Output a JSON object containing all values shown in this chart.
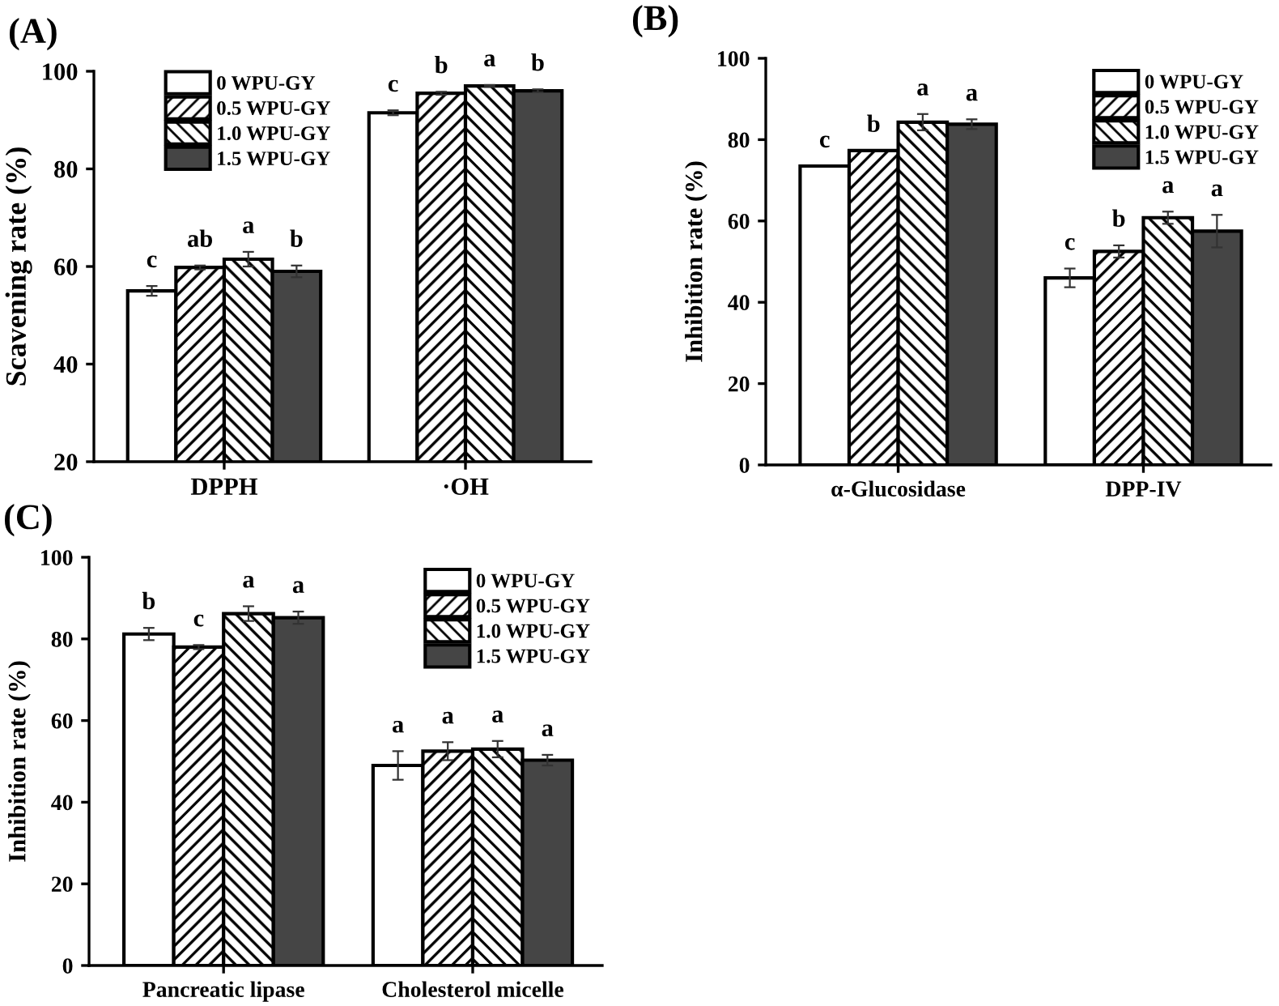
{
  "chart_data": [
    {
      "type": "bar",
      "title": "(A)",
      "ylabel": "Scavening rate (%)",
      "categories": [
        "DPPH",
        "·OH"
      ],
      "ylim": [
        20,
        100
      ],
      "yticks": [
        20,
        40,
        60,
        80,
        100
      ],
      "grid": false,
      "legend": "top left",
      "series": [
        {
          "name": "0 WPU-GY",
          "color": "#ffffff",
          "values": [
            55,
            91.5
          ],
          "errors": [
            1,
            0.5
          ],
          "value_labels": [
            "c",
            "c"
          ]
        },
        {
          "name": "0.5 WPU-GY",
          "color": "#000000",
          "values": [
            59.8,
            95.5
          ],
          "errors": [
            0.4,
            0.3
          ],
          "value_labels": [
            "ab",
            "b"
          ]
        },
        {
          "name": "1.0 WPU-GY",
          "color": "#000000",
          "values": [
            61.5,
            97
          ],
          "errors": [
            1.5,
            0.2
          ],
          "value_labels": [
            "a",
            "a"
          ]
        },
        {
          "name": "1.5 WPU-GY",
          "color": "#454545",
          "values": [
            59,
            96
          ],
          "errors": [
            1.2,
            0.3
          ],
          "value_labels": [
            "b",
            "b"
          ]
        }
      ]
    },
    {
      "type": "bar",
      "title": "(B)",
      "ylabel": "Inhibition rate (%)",
      "categories": [
        "α-Glucosidase",
        "DPP-IV"
      ],
      "ylim": [
        0,
        100
      ],
      "yticks": [
        0,
        20,
        40,
        60,
        80,
        100
      ],
      "grid": false,
      "legend": "top right",
      "series": [
        {
          "name": "0 WPU-GY",
          "color": "#ffffff",
          "values": [
            73.5,
            46
          ],
          "errors": [
            null,
            2.3
          ],
          "value_labels": [
            "c",
            "c"
          ]
        },
        {
          "name": "0.5 WPU-GY",
          "color": "#000000",
          "values": [
            77.3,
            52.5
          ],
          "errors": [
            null,
            1.5
          ],
          "value_labels": [
            "b",
            "b"
          ]
        },
        {
          "name": "1.0 WPU-GY",
          "color": "#000000",
          "values": [
            84.3,
            60.8
          ],
          "errors": [
            2,
            1.5
          ],
          "value_labels": [
            "a",
            "a"
          ]
        },
        {
          "name": "1.5 WPU-GY",
          "color": "#454545",
          "values": [
            83.8,
            57.5
          ],
          "errors": [
            1.2,
            4
          ],
          "value_labels": [
            "a",
            "a"
          ]
        }
      ]
    },
    {
      "type": "bar",
      "title": "(C)",
      "ylabel": "Inhibition rate (%)",
      "categories": [
        "Pancreatic lipase",
        "Cholesterol micelle"
      ],
      "ylim": [
        0,
        100
      ],
      "yticks": [
        0,
        20,
        40,
        60,
        80,
        100
      ],
      "grid": false,
      "legend": "top right",
      "series": [
        {
          "name": "0 WPU-GY",
          "color": "#ffffff",
          "values": [
            81.2,
            49
          ],
          "errors": [
            1.5,
            3.5
          ],
          "value_labels": [
            "b",
            "a"
          ]
        },
        {
          "name": "0.5 WPU-GY",
          "color": "#000000",
          "values": [
            78,
            52.5
          ],
          "errors": [
            0.5,
            2.2
          ],
          "value_labels": [
            "c",
            "a"
          ]
        },
        {
          "name": "1.0 WPU-GY",
          "color": "#000000",
          "values": [
            86.2,
            53
          ],
          "errors": [
            1.8,
            2
          ],
          "value_labels": [
            "a",
            "a"
          ]
        },
        {
          "name": "1.5 WPU-GY",
          "color": "#454545",
          "values": [
            85.2,
            50.3
          ],
          "errors": [
            1.5,
            1.3
          ],
          "value_labels": [
            "a",
            "a"
          ]
        }
      ]
    }
  ]
}
